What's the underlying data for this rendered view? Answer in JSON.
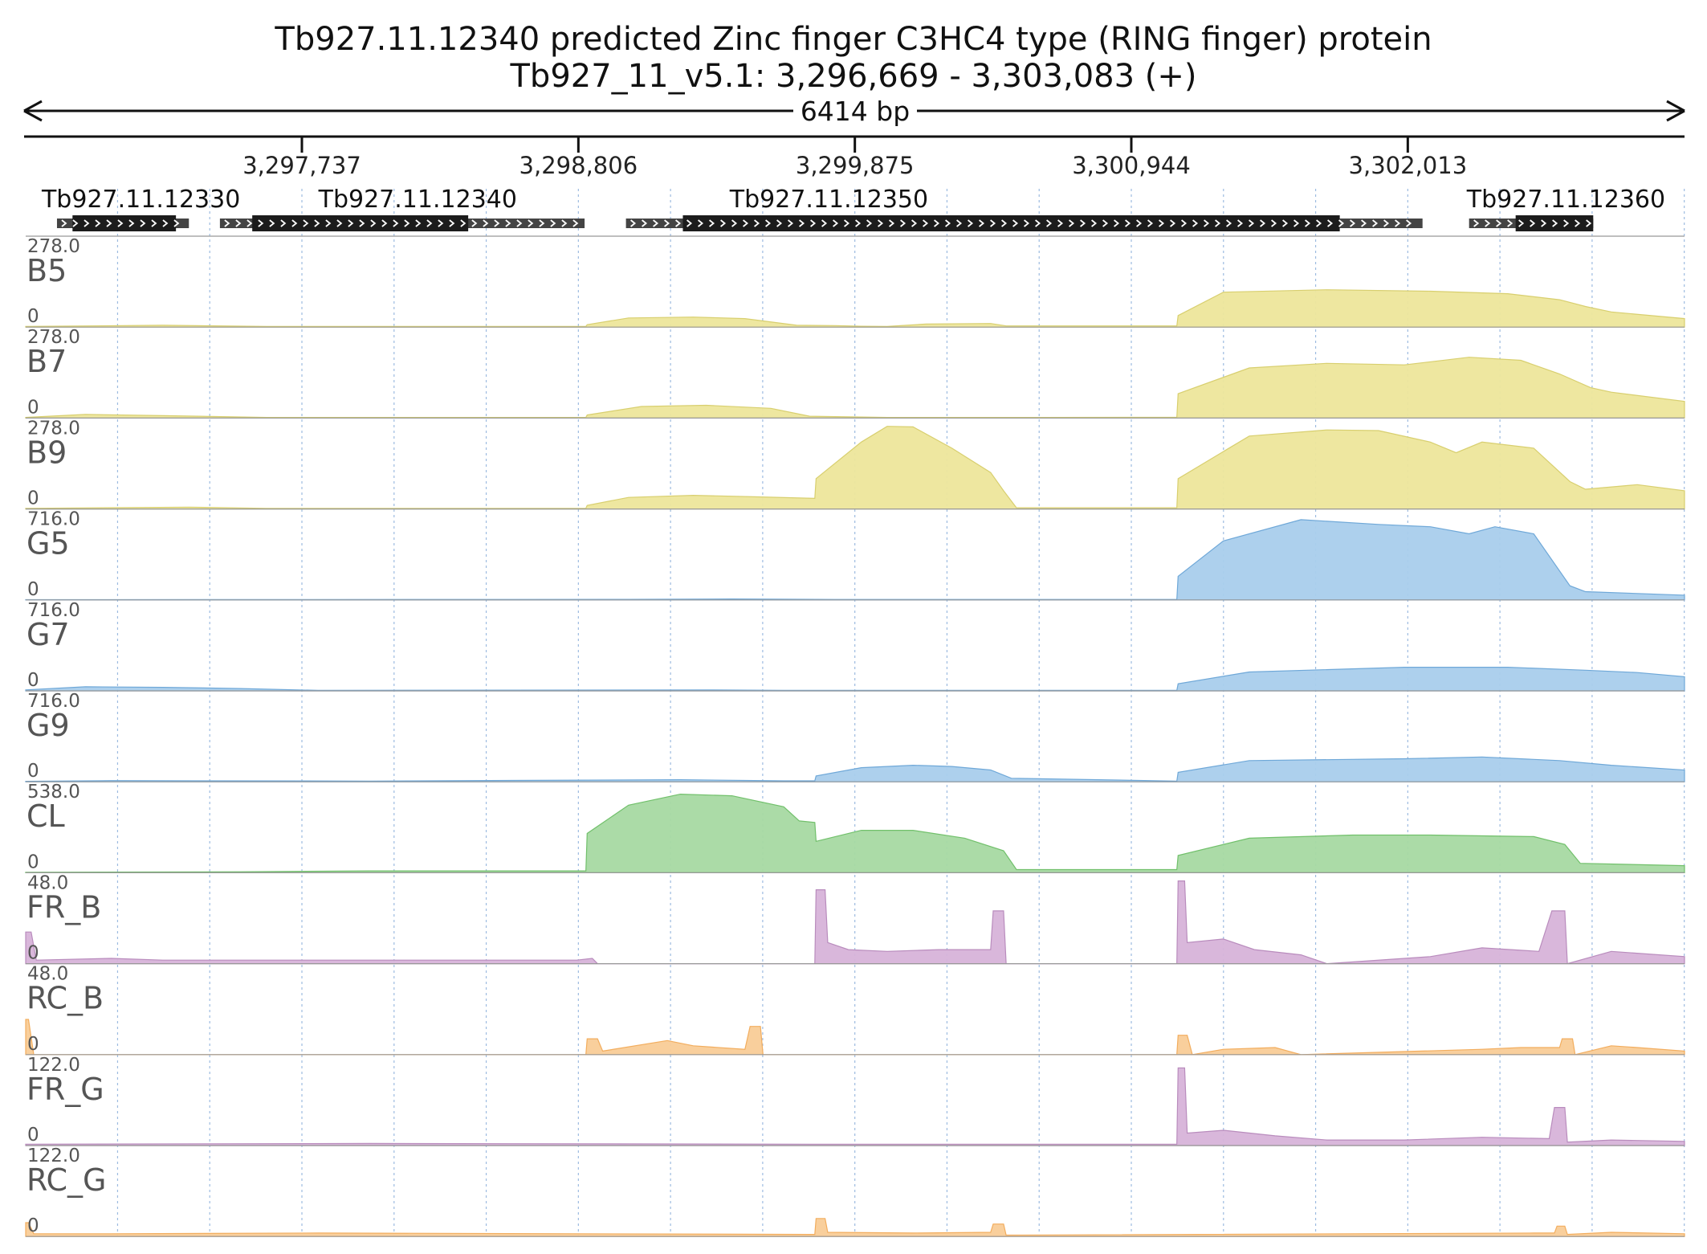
{
  "header": {
    "title_line1": "Tb927.11.12340  predicted Zinc finger  C3HC4 type (RING finger) protein",
    "title_line2": "Tb927_11_v5.1: 3,296,669 - 3,303,083 (+)",
    "span_label": "6414 bp"
  },
  "colors": {
    "bloodstream": "#ede69b",
    "bloodstream_edge": "#d8cf6f",
    "genome": "#a9cdec",
    "genome_edge": "#6fa8d8",
    "cl": "#a7d9a2",
    "cl_edge": "#71c06b",
    "fr": "#d7b3d9",
    "fr_edge": "#b98cbd",
    "rc": "#f9cc97",
    "rc_edge": "#f2ad5e",
    "gene_box": "#1c1c1c",
    "utr_box": "#444444",
    "grid": "#9dbbe0"
  },
  "chart_data": {
    "type": "area",
    "region": {
      "chrom": "Tb927_11_v5.1",
      "start": 3296669,
      "end": 3303083,
      "strand": "+"
    },
    "ticks": [
      {
        "pos": 3297737,
        "label": "3,297,737"
      },
      {
        "pos": 3298806,
        "label": "3,298,806"
      },
      {
        "pos": 3299875,
        "label": "3,299,875"
      },
      {
        "pos": 3300944,
        "label": "3,300,944"
      },
      {
        "pos": 3302013,
        "label": "3,302,013"
      }
    ],
    "genes": [
      {
        "name": "Tb927.11.12330",
        "utr_start": 3296790,
        "utr_end": 3297300,
        "cds_start": 3296850,
        "cds_end": 3297250,
        "label_pos": 3296700
      },
      {
        "name": "Tb927.11.12340",
        "utr_start": 3297420,
        "utr_end": 3298830,
        "cds_start": 3297545,
        "cds_end": 3298380,
        "label_pos": 3297770
      },
      {
        "name": "Tb927.11.12350",
        "utr_start": 3298990,
        "utr_end": 3302070,
        "cds_start": 3299210,
        "cds_end": 3301750,
        "label_pos": 3299360
      },
      {
        "name": "Tb927.11.12360",
        "utr_start": 3302250,
        "utr_end": 3302730,
        "cds_start": 3302430,
        "cds_end": 3302730,
        "label_pos": 3302210
      }
    ],
    "tracks": [
      {
        "name": "B5",
        "max_label": "278.0",
        "zero_label": "0",
        "max": 278,
        "color": "bloodstream",
        "points": [
          [
            3296669,
            2
          ],
          [
            3297200,
            6
          ],
          [
            3297600,
            2
          ],
          [
            3298835,
            2
          ],
          [
            3298840,
            8
          ],
          [
            3299000,
            30
          ],
          [
            3299250,
            33
          ],
          [
            3299450,
            28
          ],
          [
            3299650,
            6
          ],
          [
            3299800,
            5
          ],
          [
            3299900,
            3
          ],
          [
            3300000,
            2
          ],
          [
            3300150,
            10
          ],
          [
            3300400,
            12
          ],
          [
            3300460,
            4
          ],
          [
            3301120,
            4
          ],
          [
            3301125,
            38
          ],
          [
            3301300,
            115
          ],
          [
            3301700,
            123
          ],
          [
            3302100,
            118
          ],
          [
            3302400,
            110
          ],
          [
            3302600,
            90
          ],
          [
            3302700,
            68
          ],
          [
            3302800,
            50
          ],
          [
            3303083,
            28
          ]
        ]
      },
      {
        "name": "B7",
        "max_label": "278.0",
        "zero_label": "0",
        "max": 278,
        "color": "bloodstream",
        "points": [
          [
            3296669,
            2
          ],
          [
            3296900,
            12
          ],
          [
            3297200,
            8
          ],
          [
            3297600,
            2
          ],
          [
            3298835,
            2
          ],
          [
            3298840,
            10
          ],
          [
            3299050,
            38
          ],
          [
            3299300,
            42
          ],
          [
            3299550,
            32
          ],
          [
            3299700,
            6
          ],
          [
            3300000,
            2
          ],
          [
            3300600,
            2
          ],
          [
            3301120,
            3
          ],
          [
            3301125,
            80
          ],
          [
            3301400,
            165
          ],
          [
            3301700,
            180
          ],
          [
            3302000,
            175
          ],
          [
            3302250,
            200
          ],
          [
            3302450,
            190
          ],
          [
            3302600,
            145
          ],
          [
            3302720,
            100
          ],
          [
            3302800,
            85
          ],
          [
            3303083,
            55
          ]
        ]
      },
      {
        "name": "B9",
        "max_label": "278.0",
        "zero_label": "0",
        "max": 278,
        "color": "bloodstream",
        "points": [
          [
            3296669,
            2
          ],
          [
            3297300,
            6
          ],
          [
            3297600,
            2
          ],
          [
            3298835,
            2
          ],
          [
            3298840,
            12
          ],
          [
            3299000,
            38
          ],
          [
            3299250,
            45
          ],
          [
            3299500,
            40
          ],
          [
            3299720,
            35
          ],
          [
            3299725,
            100
          ],
          [
            3299900,
            220
          ],
          [
            3300000,
            272
          ],
          [
            3300100,
            270
          ],
          [
            3300250,
            200
          ],
          [
            3300400,
            120
          ],
          [
            3300450,
            60
          ],
          [
            3300500,
            4
          ],
          [
            3301120,
            4
          ],
          [
            3301125,
            100
          ],
          [
            3301400,
            240
          ],
          [
            3301700,
            260
          ],
          [
            3301900,
            258
          ],
          [
            3302100,
            220
          ],
          [
            3302200,
            185
          ],
          [
            3302300,
            220
          ],
          [
            3302500,
            200
          ],
          [
            3302640,
            90
          ],
          [
            3302700,
            65
          ],
          [
            3302900,
            80
          ],
          [
            3303083,
            60
          ]
        ]
      },
      {
        "name": "G5",
        "max_label": "716.0",
        "zero_label": "0",
        "max": 716,
        "color": "genome",
        "points": [
          [
            3296669,
            2
          ],
          [
            3299000,
            5
          ],
          [
            3299400,
            8
          ],
          [
            3299800,
            4
          ],
          [
            3301120,
            4
          ],
          [
            3301125,
            200
          ],
          [
            3301300,
            500
          ],
          [
            3301600,
            680
          ],
          [
            3301900,
            640
          ],
          [
            3302100,
            620
          ],
          [
            3302250,
            560
          ],
          [
            3302350,
            620
          ],
          [
            3302500,
            560
          ],
          [
            3302640,
            120
          ],
          [
            3302700,
            70
          ],
          [
            3303083,
            40
          ]
        ]
      },
      {
        "name": "G7",
        "max_label": "716.0",
        "zero_label": "0",
        "max": 716,
        "color": "genome",
        "points": [
          [
            3296669,
            8
          ],
          [
            3296900,
            35
          ],
          [
            3297200,
            30
          ],
          [
            3297500,
            20
          ],
          [
            3297800,
            4
          ],
          [
            3299300,
            8
          ],
          [
            3299600,
            4
          ],
          [
            3301120,
            4
          ],
          [
            3301125,
            60
          ],
          [
            3301400,
            160
          ],
          [
            3302000,
            200
          ],
          [
            3302400,
            200
          ],
          [
            3302700,
            175
          ],
          [
            3302900,
            155
          ],
          [
            3303083,
            120
          ]
        ]
      },
      {
        "name": "G9",
        "max_label": "716.0",
        "zero_label": "0",
        "max": 716,
        "color": "genome",
        "points": [
          [
            3296669,
            4
          ],
          [
            3297000,
            10
          ],
          [
            3298000,
            6
          ],
          [
            3299200,
            18
          ],
          [
            3299600,
            8
          ],
          [
            3299720,
            8
          ],
          [
            3299725,
            50
          ],
          [
            3299900,
            120
          ],
          [
            3300100,
            140
          ],
          [
            3300250,
            130
          ],
          [
            3300400,
            100
          ],
          [
            3300480,
            30
          ],
          [
            3301120,
            6
          ],
          [
            3301125,
            80
          ],
          [
            3301400,
            180
          ],
          [
            3302000,
            195
          ],
          [
            3302300,
            210
          ],
          [
            3302600,
            180
          ],
          [
            3302800,
            140
          ],
          [
            3303083,
            100
          ]
        ]
      },
      {
        "name": "CL",
        "max_label": "538.0",
        "zero_label": "0",
        "max": 538,
        "color": "cl",
        "points": [
          [
            3296669,
            3
          ],
          [
            3297500,
            6
          ],
          [
            3298000,
            12
          ],
          [
            3298835,
            12
          ],
          [
            3298840,
            250
          ],
          [
            3299000,
            430
          ],
          [
            3299200,
            500
          ],
          [
            3299400,
            490
          ],
          [
            3299600,
            420
          ],
          [
            3299660,
            330
          ],
          [
            3299720,
            320
          ],
          [
            3299725,
            200
          ],
          [
            3299900,
            270
          ],
          [
            3300100,
            270
          ],
          [
            3300300,
            220
          ],
          [
            3300450,
            140
          ],
          [
            3300500,
            20
          ],
          [
            3301120,
            20
          ],
          [
            3301125,
            110
          ],
          [
            3301400,
            220
          ],
          [
            3301800,
            240
          ],
          [
            3302100,
            240
          ],
          [
            3302500,
            230
          ],
          [
            3302620,
            180
          ],
          [
            3302680,
            60
          ],
          [
            3303083,
            45
          ]
        ]
      },
      {
        "name": "FR_B",
        "max_label": "48.0",
        "zero_label": "0",
        "max": 48,
        "color": "fr",
        "points": [
          [
            3296669,
            18
          ],
          [
            3296690,
            18
          ],
          [
            3296710,
            2
          ],
          [
            3297000,
            3
          ],
          [
            3297200,
            2
          ],
          [
            3298800,
            2
          ],
          [
            3298860,
            3
          ],
          [
            3298880,
            0
          ],
          [
            3299720,
            0
          ],
          [
            3299725,
            42
          ],
          [
            3299760,
            42
          ],
          [
            3299770,
            12
          ],
          [
            3299850,
            8
          ],
          [
            3300000,
            7
          ],
          [
            3300200,
            8
          ],
          [
            3300400,
            8
          ],
          [
            3300410,
            30
          ],
          [
            3300450,
            30
          ],
          [
            3300460,
            0
          ],
          [
            3301120,
            0
          ],
          [
            3301125,
            47
          ],
          [
            3301150,
            47
          ],
          [
            3301160,
            12
          ],
          [
            3301300,
            14
          ],
          [
            3301420,
            8
          ],
          [
            3301600,
            5
          ],
          [
            3301700,
            0
          ],
          [
            3302100,
            4
          ],
          [
            3302300,
            9
          ],
          [
            3302520,
            7
          ],
          [
            3302570,
            30
          ],
          [
            3302620,
            30
          ],
          [
            3302630,
            0
          ],
          [
            3302800,
            7
          ],
          [
            3303083,
            4
          ]
        ]
      },
      {
        "name": "RC_B",
        "max_label": "48.0",
        "zero_label": "0",
        "max": 48,
        "color": "rc",
        "points": [
          [
            3296669,
            20
          ],
          [
            3296680,
            20
          ],
          [
            3296700,
            0
          ],
          [
            3298835,
            0
          ],
          [
            3298840,
            9
          ],
          [
            3298880,
            9
          ],
          [
            3298900,
            2
          ],
          [
            3299150,
            8
          ],
          [
            3299250,
            5
          ],
          [
            3299450,
            3
          ],
          [
            3299470,
            16
          ],
          [
            3299510,
            16
          ],
          [
            3299520,
            0
          ],
          [
            3301120,
            0
          ],
          [
            3301125,
            11
          ],
          [
            3301160,
            11
          ],
          [
            3301180,
            0
          ],
          [
            3301300,
            3
          ],
          [
            3301500,
            4
          ],
          [
            3301600,
            0
          ],
          [
            3302300,
            3
          ],
          [
            3302450,
            4
          ],
          [
            3302600,
            4
          ],
          [
            3302610,
            9
          ],
          [
            3302650,
            9
          ],
          [
            3302660,
            0
          ],
          [
            3302800,
            5
          ],
          [
            3302900,
            4
          ],
          [
            3303083,
            2
          ]
        ]
      },
      {
        "name": "FR_G",
        "max_label": "122.0",
        "zero_label": "0",
        "max": 122,
        "color": "fr",
        "points": [
          [
            3296669,
            2
          ],
          [
            3298000,
            3
          ],
          [
            3299700,
            2
          ],
          [
            3301120,
            2
          ],
          [
            3301125,
            112
          ],
          [
            3301150,
            112
          ],
          [
            3301160,
            18
          ],
          [
            3301300,
            22
          ],
          [
            3301500,
            14
          ],
          [
            3301700,
            8
          ],
          [
            3302000,
            8
          ],
          [
            3302300,
            12
          ],
          [
            3302560,
            10
          ],
          [
            3302580,
            55
          ],
          [
            3302620,
            55
          ],
          [
            3302630,
            5
          ],
          [
            3302800,
            8
          ],
          [
            3303083,
            6
          ]
        ]
      },
      {
        "name": "RC_G",
        "max_label": "122.0",
        "zero_label": "0",
        "max": 122,
        "color": "rc",
        "points": [
          [
            3296669,
            20
          ],
          [
            3296680,
            20
          ],
          [
            3296700,
            4
          ],
          [
            3297000,
            4
          ],
          [
            3297800,
            5
          ],
          [
            3299700,
            3
          ],
          [
            3299720,
            3
          ],
          [
            3299725,
            26
          ],
          [
            3299760,
            26
          ],
          [
            3299770,
            6
          ],
          [
            3300100,
            5
          ],
          [
            3300400,
            6
          ],
          [
            3300410,
            18
          ],
          [
            3300450,
            18
          ],
          [
            3300460,
            2
          ],
          [
            3302500,
            5
          ],
          [
            3302580,
            5
          ],
          [
            3302590,
            15
          ],
          [
            3302620,
            15
          ],
          [
            3302630,
            3
          ],
          [
            3302800,
            6
          ],
          [
            3303083,
            4
          ]
        ]
      }
    ]
  }
}
